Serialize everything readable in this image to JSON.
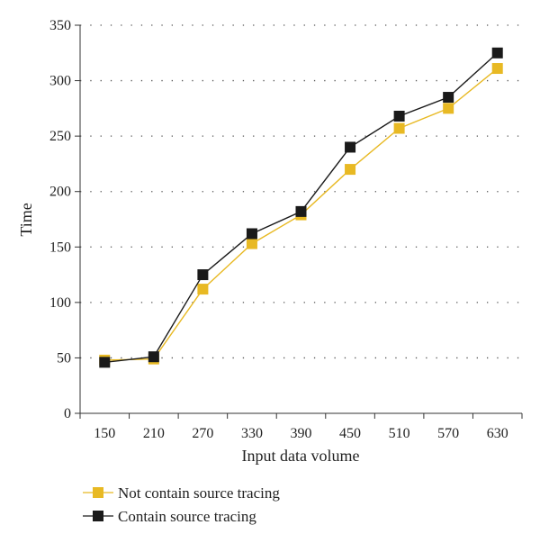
{
  "chart_data": {
    "type": "line",
    "xlabel": "Input data volume",
    "ylabel": "Time",
    "x": [
      150,
      210,
      270,
      330,
      390,
      450,
      510,
      570,
      630
    ],
    "ylim": [
      0,
      350
    ],
    "yticks": [
      0,
      50,
      100,
      150,
      200,
      250,
      300,
      350
    ],
    "grid": "horizontal-dotted",
    "legend_position": "bottom-left",
    "series": [
      {
        "name": "Not contain source tracing",
        "color": "#E8B923",
        "values": [
          48,
          49,
          112,
          153,
          179,
          220,
          257,
          275,
          311
        ]
      },
      {
        "name": "Contain source tracing",
        "color": "#1A1A1A",
        "values": [
          46,
          51,
          125,
          162,
          182,
          240,
          268,
          285,
          325
        ]
      }
    ]
  }
}
